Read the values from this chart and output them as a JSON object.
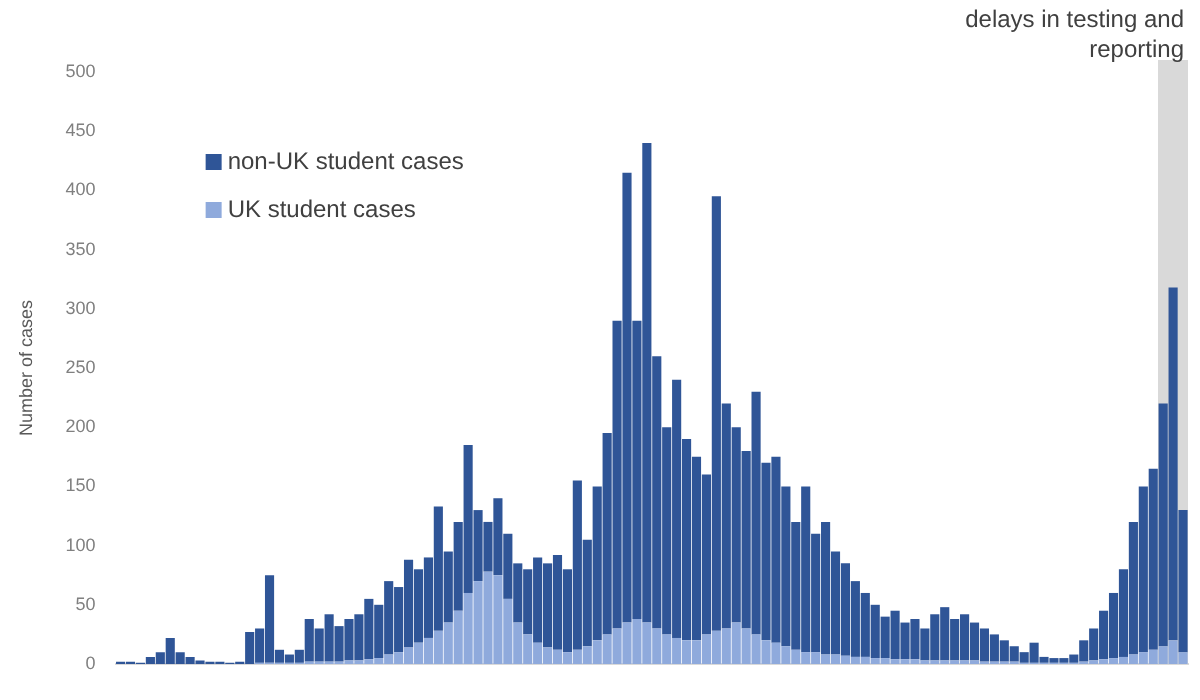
{
  "chart_data": {
    "type": "bar",
    "stacked": true,
    "ylabel": "Number of cases",
    "categories": [
      null,
      null,
      null,
      null,
      null,
      null,
      null,
      null,
      null,
      null,
      null,
      null,
      null,
      null,
      null,
      null,
      null,
      null,
      null,
      null,
      null,
      null,
      null,
      null,
      null,
      null,
      null,
      null,
      null,
      null,
      null,
      null,
      null,
      null,
      null,
      null,
      null,
      null,
      null,
      null,
      null,
      null,
      null,
      null,
      null,
      null,
      null,
      null,
      null,
      null,
      null,
      null,
      null,
      null,
      null,
      null,
      null,
      null,
      null,
      null,
      null,
      null,
      null,
      null,
      null,
      null,
      null,
      null,
      null,
      null,
      null,
      null,
      null,
      null,
      null,
      null,
      null,
      null,
      null,
      null,
      null,
      null,
      null,
      null,
      null,
      null,
      null,
      null,
      null,
      null,
      null,
      null,
      null,
      null,
      null,
      null,
      null,
      null,
      null,
      null,
      null,
      null,
      null,
      null,
      null,
      null,
      null,
      null
    ],
    "series": [
      {
        "name": "UK student cases",
        "color": "#8faadc",
        "values": [
          0,
          0,
          0,
          0,
          0,
          0,
          0,
          0,
          0,
          0,
          0,
          0,
          0,
          0,
          1,
          1,
          1,
          1,
          1,
          2,
          2,
          2,
          2,
          3,
          3,
          4,
          5,
          8,
          10,
          14,
          18,
          22,
          28,
          35,
          45,
          60,
          70,
          78,
          75,
          55,
          35,
          25,
          18,
          14,
          12,
          10,
          12,
          15,
          20,
          25,
          30,
          35,
          38,
          35,
          30,
          25,
          22,
          20,
          20,
          25,
          28,
          30,
          35,
          30,
          25,
          20,
          18,
          15,
          12,
          10,
          10,
          8,
          8,
          7,
          6,
          6,
          5,
          5,
          4,
          4,
          4,
          3,
          3,
          3,
          3,
          3,
          3,
          2,
          2,
          2,
          2,
          1,
          1,
          1,
          1,
          1,
          1,
          2,
          3,
          4,
          5,
          6,
          8,
          10,
          12,
          15,
          20,
          10
        ]
      },
      {
        "name": "non-UK student cases",
        "color": "#2f5597",
        "values": [
          2,
          2,
          1,
          6,
          10,
          22,
          10,
          6,
          3,
          2,
          2,
          1,
          2,
          27,
          29,
          74,
          11,
          7,
          11,
          36,
          28,
          40,
          30,
          35,
          39,
          51,
          45,
          62,
          55,
          74,
          62,
          68,
          105,
          60,
          75,
          125,
          60,
          42,
          65,
          55,
          50,
          55,
          72,
          71,
          80,
          70,
          143,
          90,
          130,
          170,
          260,
          380,
          252,
          405,
          230,
          175,
          218,
          170,
          155,
          135,
          367,
          190,
          165,
          150,
          205,
          150,
          157,
          135,
          108,
          140,
          100,
          112,
          87,
          78,
          64,
          54,
          45,
          35,
          41,
          31,
          34,
          27,
          39,
          45,
          35,
          39,
          32,
          28,
          23,
          18,
          13,
          9,
          17,
          5,
          4,
          4,
          7,
          18,
          27,
          41,
          55,
          74,
          112,
          140,
          153,
          205,
          298,
          120
        ]
      }
    ],
    "ylim": [
      0,
      500
    ],
    "yticks": [
      0,
      50,
      100,
      150,
      200,
      250,
      300,
      350,
      400,
      450,
      500
    ],
    "annotations": [
      "delays in testing and reporting"
    ],
    "legend": "top left",
    "tick_labels": "y",
    "grid": false
  }
}
